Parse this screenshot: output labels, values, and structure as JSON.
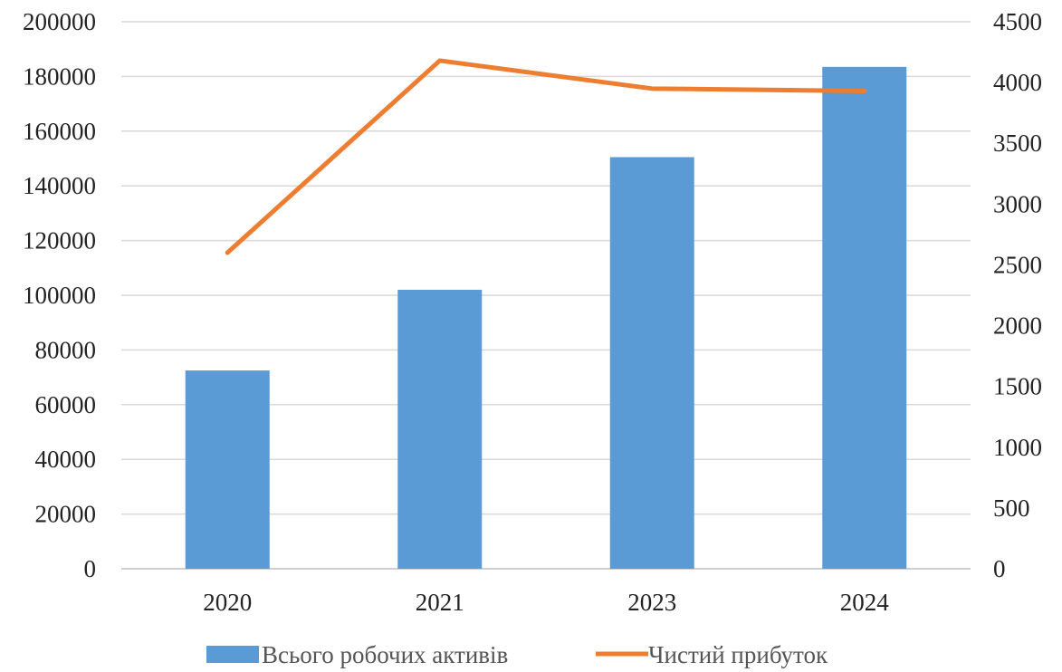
{
  "chart_data": {
    "type": "bar",
    "categories": [
      "2020",
      "2021",
      "2023",
      "2024"
    ],
    "series": [
      {
        "name": "Всього робочих активів",
        "type": "bar",
        "axis": "left",
        "color": "#5b9bd5",
        "values": [
          72500,
          102000,
          150500,
          183500
        ]
      },
      {
        "name": "Чистий прибуток",
        "type": "line",
        "axis": "right",
        "color": "#ed7d31",
        "values": [
          2600,
          4180,
          3950,
          3930
        ]
      }
    ],
    "y_left": {
      "min": 0,
      "max": 200000,
      "step": 20000,
      "ticks": [
        "0",
        "20000",
        "40000",
        "60000",
        "80000",
        "100000",
        "120000",
        "140000",
        "160000",
        "180000",
        "200000"
      ]
    },
    "y_right": {
      "min": 0,
      "max": 4500,
      "step": 500,
      "ticks": [
        "0",
        "500",
        "1000",
        "1500",
        "2000",
        "2500",
        "3000",
        "3500",
        "4000",
        "4500"
      ]
    },
    "grid": true,
    "legend": {
      "position": "bottom"
    },
    "title": "",
    "xlabel": "",
    "ylabel": ""
  }
}
